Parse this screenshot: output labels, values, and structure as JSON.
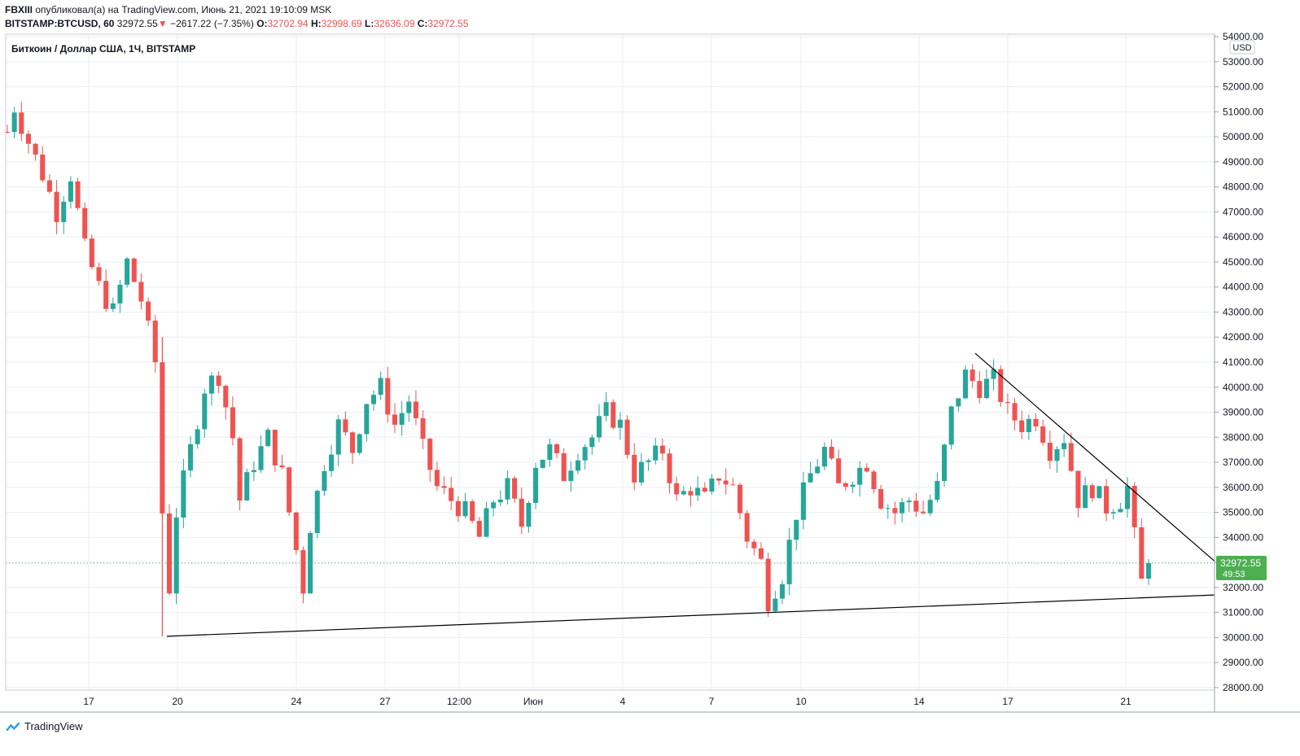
{
  "header": {
    "line1_user": "FBXIII",
    "line1_rest": "опубликовал(а) на TradingView.com, Июнь 21, 2021 19:10:09 MSK",
    "symbol": "BITSTAMP:BTCUSD, 60",
    "last": "32972.55",
    "change_arrow": "▼",
    "change": "−2617.22 (−7.35%)",
    "o_label": "O:",
    "o_value": "32702.94",
    "h_label": "H:",
    "h_value": "32998.69",
    "l_label": "L:",
    "l_value": "32636.09",
    "c_label": "C:",
    "c_value": "32972.55"
  },
  "legend_title": "Биткоин / Доллар США, 1Ч, BITSTAMP",
  "currency_label": "USD",
  "price_label": "32972.55",
  "countdown_label": "49:53",
  "footer_brand": "TradingView",
  "colors": {
    "up": "#26a69a",
    "down": "#ef5350",
    "grid": "#e9eef3",
    "axis_text": "#131722",
    "last_price_bg": "#4caf50",
    "trendline": "#000000"
  },
  "chart_data": {
    "type": "candlestick",
    "y_axis": {
      "ticks": [
        "28000.00",
        "29000.00",
        "30000.00",
        "31000.00",
        "32000.00",
        "33000.00",
        "34000.00",
        "35000.00",
        "36000.00",
        "37000.00",
        "38000.00",
        "39000.00",
        "40000.00",
        "41000.00",
        "42000.00",
        "43000.00",
        "44000.00",
        "45000.00",
        "46000.00",
        "47000.00",
        "48000.00",
        "49000.00",
        "50000.00",
        "51000.00",
        "52000.00",
        "53000.00",
        "54000.00"
      ],
      "range": [
        27900,
        54100
      ]
    },
    "x_axis": {
      "ticks": [
        "17",
        "20",
        "24",
        "27",
        "12:00",
        "Июн",
        "4",
        "7",
        "10",
        "14",
        "17",
        "21"
      ]
    },
    "last_price": 32972.55,
    "price_path": [
      [
        0,
        50200
      ],
      [
        1,
        51200
      ],
      [
        3,
        49800
      ],
      [
        5,
        48500
      ],
      [
        7,
        47000
      ],
      [
        9,
        48500
      ],
      [
        11,
        45500
      ],
      [
        13,
        44000
      ],
      [
        15,
        43000
      ],
      [
        17,
        45000
      ],
      [
        19,
        43500
      ],
      [
        21,
        41000
      ],
      [
        22,
        35000
      ],
      [
        23,
        32000
      ],
      [
        24,
        35000
      ],
      [
        26,
        37500
      ],
      [
        28,
        40000
      ],
      [
        30,
        40500
      ],
      [
        32,
        38000
      ],
      [
        33,
        35500
      ],
      [
        35,
        37000
      ],
      [
        37,
        38000
      ],
      [
        39,
        36500
      ],
      [
        41,
        33500
      ],
      [
        42,
        32000
      ],
      [
        43,
        34500
      ],
      [
        45,
        37000
      ],
      [
        47,
        38500
      ],
      [
        49,
        37500
      ],
      [
        51,
        39500
      ],
      [
        53,
        40000
      ],
      [
        55,
        38500
      ],
      [
        57,
        39500
      ],
      [
        59,
        37500
      ],
      [
        61,
        36000
      ],
      [
        63,
        35500
      ],
      [
        65,
        35000
      ],
      [
        67,
        34000
      ],
      [
        69,
        35500
      ],
      [
        71,
        36000
      ],
      [
        73,
        34500
      ],
      [
        75,
        37000
      ],
      [
        77,
        37500
      ],
      [
        79,
        36500
      ],
      [
        81,
        37500
      ],
      [
        83,
        38000
      ],
      [
        85,
        39000
      ],
      [
        87,
        38500
      ],
      [
        89,
        36500
      ],
      [
        91,
        37000
      ],
      [
        93,
        37500
      ],
      [
        95,
        35500
      ],
      [
        97,
        36000
      ],
      [
        99,
        35500
      ],
      [
        101,
        36500
      ],
      [
        103,
        36000
      ],
      [
        105,
        34000
      ],
      [
        107,
        33000
      ],
      [
        108,
        31500
      ],
      [
        110,
        32500
      ],
      [
        112,
        35000
      ],
      [
        114,
        36500
      ],
      [
        116,
        37500
      ],
      [
        118,
        36000
      ],
      [
        120,
        36500
      ],
      [
        122,
        37000
      ],
      [
        124,
        35500
      ],
      [
        126,
        35000
      ],
      [
        128,
        35500
      ],
      [
        130,
        35000
      ],
      [
        132,
        36000
      ],
      [
        134,
        39000
      ],
      [
        136,
        40500
      ],
      [
        138,
        40000
      ],
      [
        140,
        40300
      ],
      [
        142,
        39000
      ],
      [
        144,
        38500
      ],
      [
        146,
        38800
      ],
      [
        148,
        37500
      ],
      [
        150,
        38000
      ],
      [
        152,
        35500
      ],
      [
        154,
        36000
      ],
      [
        156,
        35200
      ],
      [
        158,
        35500
      ],
      [
        159,
        36000
      ],
      [
        160,
        34000
      ],
      [
        161,
        32200
      ],
      [
        162,
        32972
      ]
    ],
    "trendlines": [
      {
        "from": {
          "x": "19 мая",
          "y": 30050
        },
        "to": {
          "x": "22 июня",
          "y": 31700
        }
      },
      {
        "from": {
          "x": "16 июня",
          "y": 41350
        },
        "to": {
          "x": "22 июня",
          "y": 33050
        }
      }
    ]
  }
}
